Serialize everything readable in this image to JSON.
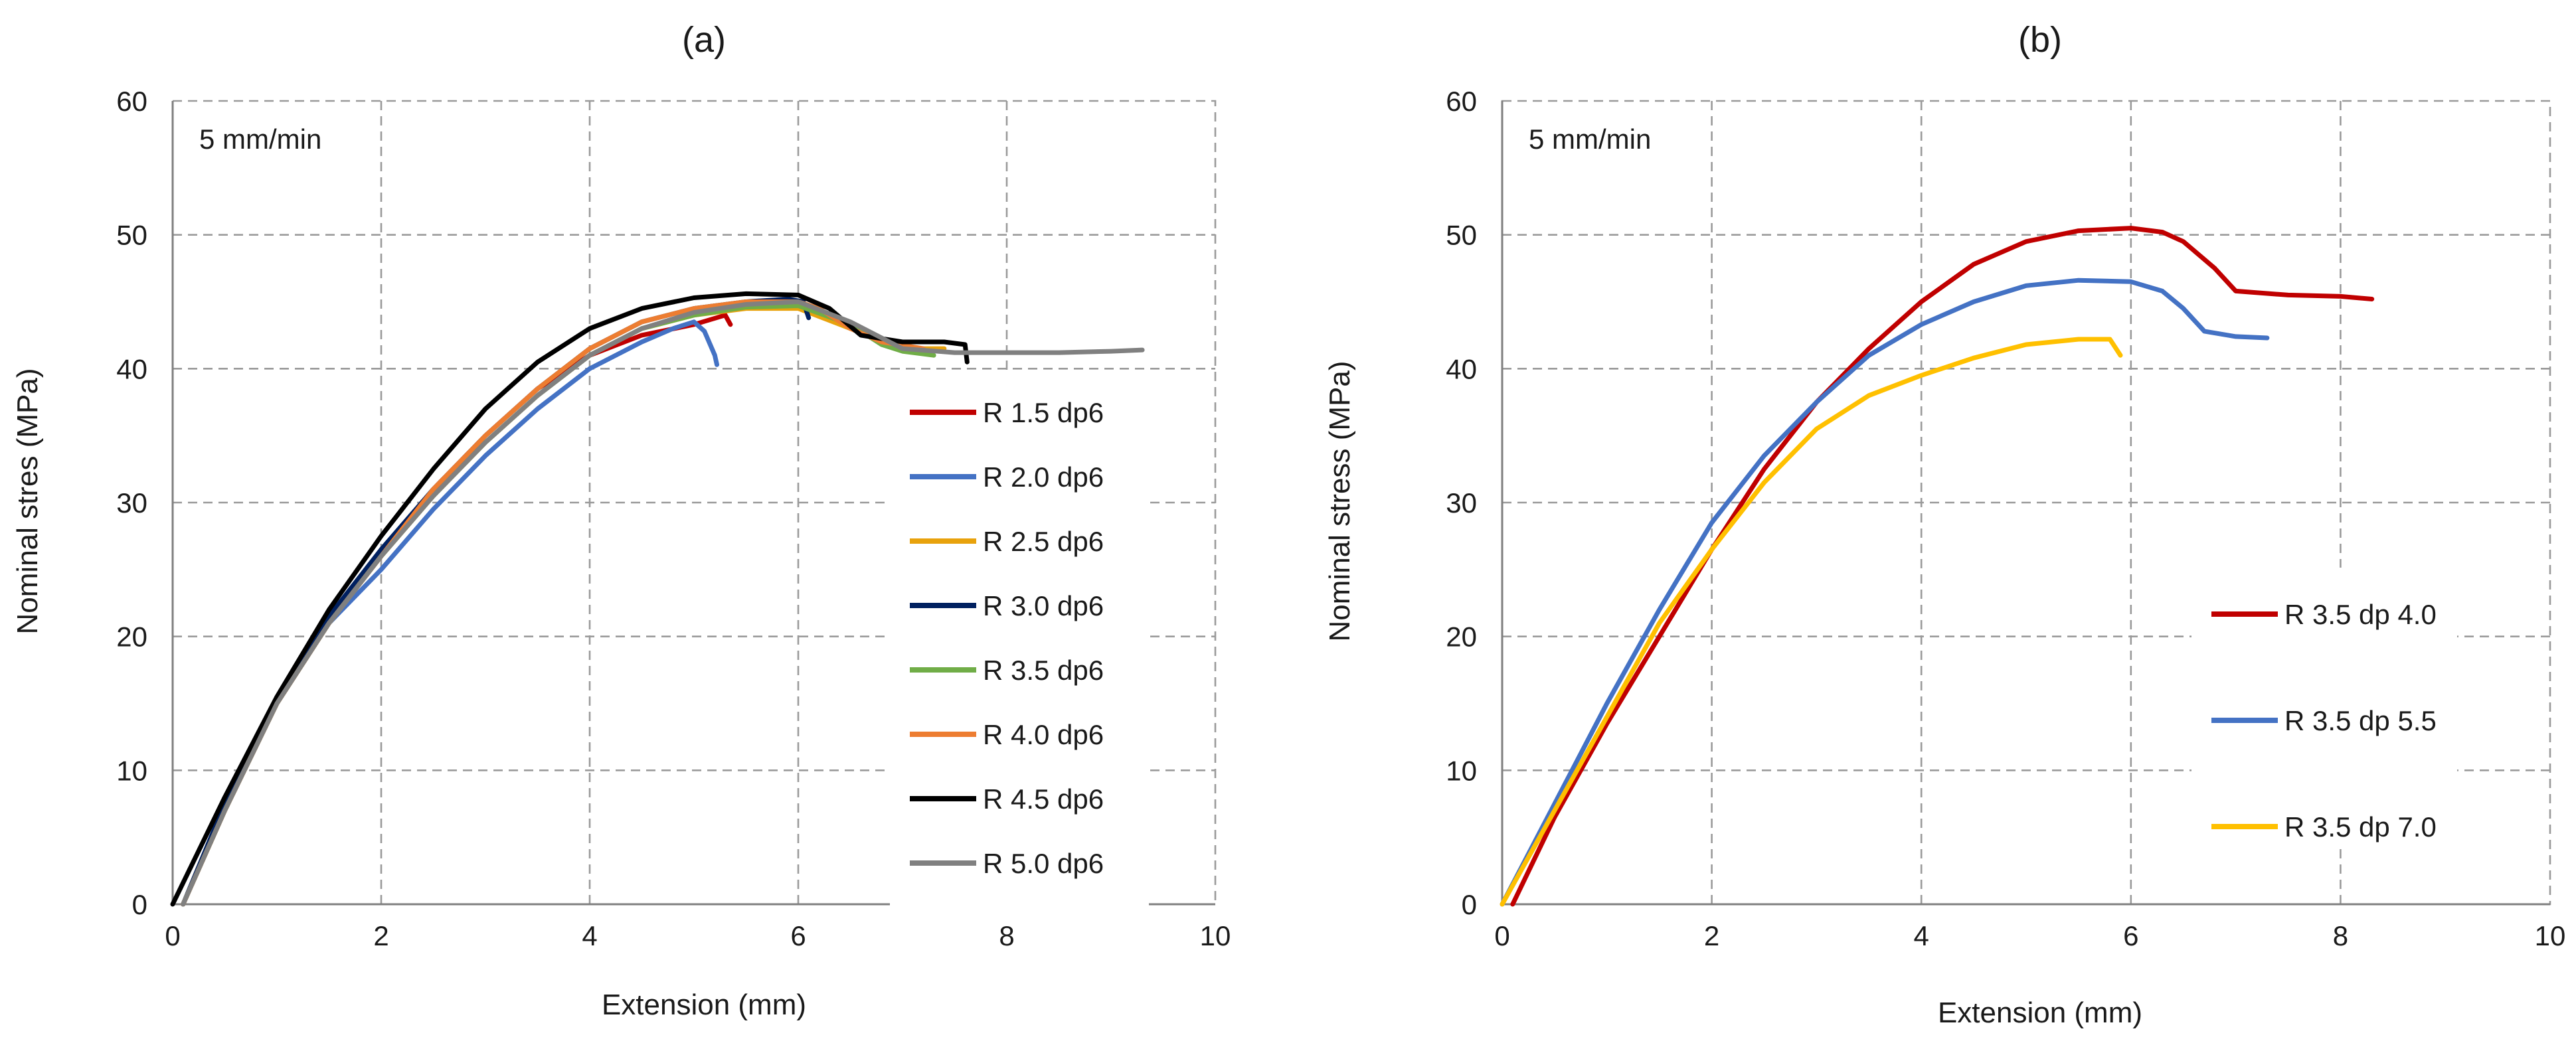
{
  "chart_data": [
    {
      "type": "line",
      "title": "(a)",
      "xlabel": "Extension (mm)",
      "ylabel": "Nominal stres (MPa)",
      "xlim": [
        0,
        10
      ],
      "ylim": [
        0,
        60
      ],
      "xticks": [
        "0",
        "2",
        "4",
        "6",
        "8",
        "10"
      ],
      "yticks": [
        "0",
        "10",
        "20",
        "30",
        "40",
        "50",
        "60"
      ],
      "grid": true,
      "annotation": "5 mm/min",
      "legend_position": "right-middle",
      "series": [
        {
          "name": "R 1.5 dp6",
          "color": "#c00000",
          "x": [
            0.1,
            0.5,
            1,
            1.5,
            2,
            2.5,
            3,
            3.5,
            4,
            4.5,
            5,
            5.3,
            5.35
          ],
          "y": [
            0,
            7,
            15,
            21,
            26,
            31,
            35,
            38.5,
            41,
            42.5,
            43.3,
            44,
            43.3
          ]
        },
        {
          "name": "R 2.0 dp6",
          "color": "#4472c4",
          "x": [
            0.1,
            0.5,
            1,
            1.5,
            2,
            2.5,
            3,
            3.5,
            4,
            4.5,
            4.8,
            5.0,
            5.1,
            5.2,
            5.22
          ],
          "y": [
            0,
            7,
            15,
            21,
            25,
            29.5,
            33.5,
            37,
            40,
            42,
            43,
            43.5,
            42.8,
            41,
            40.3
          ]
        },
        {
          "name": "R 2.5 dp6",
          "color": "#e8a20c",
          "x": [
            0.1,
            0.5,
            1,
            1.5,
            2,
            2.5,
            3,
            3.5,
            4,
            4.5,
            5,
            5.5,
            6,
            6.5,
            7,
            7.4
          ],
          "y": [
            0,
            7,
            15,
            21,
            26,
            30.5,
            34.5,
            38,
            41,
            43,
            44,
            44.5,
            44.5,
            43,
            41.5,
            41.5
          ]
        },
        {
          "name": "R 3.0 dp6",
          "color": "#002060",
          "x": [
            0.1,
            0.5,
            1,
            1.5,
            2,
            2.5,
            3,
            3.5,
            4,
            4.5,
            5,
            5.5,
            5.9,
            6.05,
            6.1
          ],
          "y": [
            0,
            7.5,
            15,
            21.5,
            26.5,
            31,
            35,
            38.5,
            41.5,
            43.5,
            44.5,
            45,
            45.2,
            45,
            43.8
          ]
        },
        {
          "name": "R 3.5 dp6",
          "color": "#70ad47",
          "x": [
            0.1,
            0.5,
            1,
            1.5,
            2,
            2.5,
            3,
            3.5,
            4,
            4.5,
            5,
            5.5,
            6,
            6.5,
            6.8,
            7,
            7.3
          ],
          "y": [
            0,
            7,
            15,
            21,
            26,
            30.5,
            34.5,
            38,
            41,
            43,
            44,
            44.6,
            44.7,
            43.3,
            41.8,
            41.3,
            41
          ]
        },
        {
          "name": "R 4.0 dp6",
          "color": "#ed7d31",
          "x": [
            0.1,
            0.5,
            1,
            1.5,
            2,
            2.5,
            3,
            3.5,
            4,
            4.5,
            5,
            5.5,
            6,
            6.2,
            6.5,
            6.8,
            7.2
          ],
          "y": [
            0,
            7,
            15,
            21,
            26,
            31,
            35,
            38.5,
            41.5,
            43.5,
            44.5,
            45,
            45,
            44.5,
            43,
            42,
            41.5
          ]
        },
        {
          "name": "R 4.5 dp6",
          "color": "#000000",
          "x": [
            0,
            0.5,
            1,
            1.5,
            2,
            2.5,
            3,
            3.5,
            4,
            4.5,
            5,
            5.5,
            6,
            6.3,
            6.6,
            7,
            7.4,
            7.6,
            7.62
          ],
          "y": [
            0,
            8,
            15.5,
            22,
            27.5,
            32.5,
            37,
            40.5,
            43,
            44.5,
            45.3,
            45.6,
            45.5,
            44.5,
            42.5,
            42,
            42,
            41.8,
            40.5
          ]
        },
        {
          "name": "R 5.0 dp6",
          "color": "#808080",
          "x": [
            0.1,
            0.5,
            1,
            1.5,
            2,
            2.5,
            3,
            3.5,
            4,
            4.5,
            5,
            5.5,
            6,
            6.5,
            7,
            7.5,
            8,
            8.5,
            9,
            9.3
          ],
          "y": [
            0,
            7,
            15,
            21,
            26,
            30.5,
            34.5,
            38,
            41,
            43,
            44.2,
            44.8,
            45,
            43.5,
            41.5,
            41.2,
            41.2,
            41.2,
            41.3,
            41.4
          ]
        }
      ]
    },
    {
      "type": "line",
      "title": "(b)",
      "xlabel": "Extension (mm)",
      "ylabel": "Nominal stress (MPa)",
      "xlim": [
        0,
        10
      ],
      "ylim": [
        0,
        60
      ],
      "xticks": [
        "0",
        "2",
        "4",
        "6",
        "8",
        "10"
      ],
      "yticks": [
        "0",
        "10",
        "20",
        "30",
        "40",
        "50",
        "60"
      ],
      "grid": true,
      "annotation": "5 mm/min",
      "legend_position": "right-lower",
      "series": [
        {
          "name": "R 3.5 dp 4.0",
          "color": "#c00000",
          "x": [
            0.1,
            0.5,
            1,
            1.5,
            2,
            2.5,
            3,
            3.5,
            4,
            4.5,
            5,
            5.5,
            6,
            6.3,
            6.5,
            6.8,
            7,
            7.5,
            8,
            8.3
          ],
          "y": [
            0,
            6.5,
            13.5,
            20,
            26.5,
            32.5,
            37.5,
            41.5,
            45,
            47.8,
            49.5,
            50.3,
            50.5,
            50.2,
            49.5,
            47.5,
            45.8,
            45.5,
            45.4,
            45.2
          ]
        },
        {
          "name": "R 3.5 dp 5.5",
          "color": "#4472c4",
          "x": [
            0,
            0.5,
            1,
            1.5,
            2,
            2.5,
            3,
            3.5,
            4,
            4.5,
            5,
            5.5,
            6,
            6.3,
            6.5,
            6.7,
            7,
            7.3
          ],
          "y": [
            0,
            7.5,
            15,
            22,
            28.5,
            33.5,
            37.5,
            41,
            43.3,
            45,
            46.2,
            46.6,
            46.5,
            45.8,
            44.5,
            42.8,
            42.4,
            42.3
          ]
        },
        {
          "name": "R 3.5 dp 7.0",
          "color": "#ffc000",
          "x": [
            0,
            0.5,
            1,
            1.5,
            2,
            2.5,
            3,
            3.5,
            4,
            4.5,
            5,
            5.5,
            5.8,
            5.9
          ],
          "y": [
            0,
            7,
            14,
            21,
            26.5,
            31.5,
            35.5,
            38,
            39.5,
            40.8,
            41.8,
            42.2,
            42.2,
            41
          ]
        }
      ]
    }
  ]
}
